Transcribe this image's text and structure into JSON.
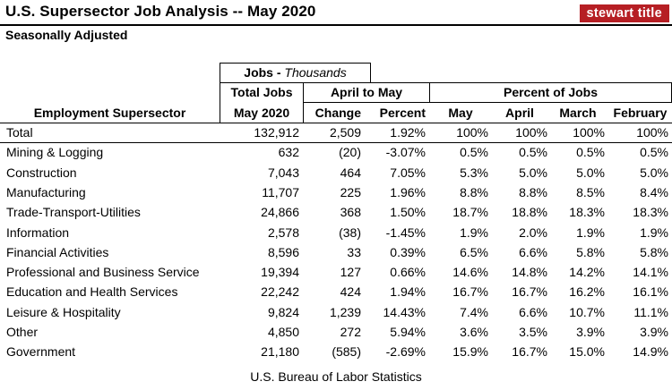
{
  "header": {
    "title": "U.S.  Supersector Job Analysis -- May 2020",
    "subtitle": "Seasonally Adjusted",
    "logo_text": "stewart title"
  },
  "table": {
    "group_header_jobs_bold": "Jobs - ",
    "group_header_jobs_italic": "Thousands",
    "col_total_jobs_1": "Total Jobs",
    "col_total_jobs_2": "May 2020",
    "group_april_may": "April to May",
    "group_percent_jobs": "Percent of Jobs",
    "col_employment": "Employment Supersector",
    "col_change": "Change",
    "col_percent": "Percent",
    "col_may": "May",
    "col_april": "April",
    "col_march": "March",
    "col_february": "February",
    "rows": [
      {
        "name": "Total",
        "total": "132,912",
        "change": "2,509",
        "percent": "1.92%",
        "may": "100%",
        "april": "100%",
        "march": "100%",
        "feb": "100%"
      },
      {
        "name": "Mining & Logging",
        "total": "632",
        "change": "(20)",
        "percent": "-3.07%",
        "may": "0.5%",
        "april": "0.5%",
        "march": "0.5%",
        "feb": "0.5%"
      },
      {
        "name": "Construction",
        "total": "7,043",
        "change": "464",
        "percent": "7.05%",
        "may": "5.3%",
        "april": "5.0%",
        "march": "5.0%",
        "feb": "5.0%"
      },
      {
        "name": "Manufacturing",
        "total": "11,707",
        "change": "225",
        "percent": "1.96%",
        "may": "8.8%",
        "april": "8.8%",
        "march": "8.5%",
        "feb": "8.4%"
      },
      {
        "name": "Trade-Transport-Utilities",
        "total": "24,866",
        "change": "368",
        "percent": "1.50%",
        "may": "18.7%",
        "april": "18.8%",
        "march": "18.3%",
        "feb": "18.3%"
      },
      {
        "name": "Information",
        "total": "2,578",
        "change": "(38)",
        "percent": "-1.45%",
        "may": "1.9%",
        "april": "2.0%",
        "march": "1.9%",
        "feb": "1.9%"
      },
      {
        "name": "Financial Activities",
        "total": "8,596",
        "change": "33",
        "percent": "0.39%",
        "may": "6.5%",
        "april": "6.6%",
        "march": "5.8%",
        "feb": "5.8%"
      },
      {
        "name": "Professional and Business Service",
        "total": "19,394",
        "change": "127",
        "percent": "0.66%",
        "may": "14.6%",
        "april": "14.8%",
        "march": "14.2%",
        "feb": "14.1%"
      },
      {
        "name": "Education and Health Services",
        "total": "22,242",
        "change": "424",
        "percent": "1.94%",
        "may": "16.7%",
        "april": "16.7%",
        "march": "16.2%",
        "feb": "16.1%"
      },
      {
        "name": "Leisure & Hospitality",
        "total": "9,824",
        "change": "1,239",
        "percent": "14.43%",
        "may": "7.4%",
        "april": "6.6%",
        "march": "10.7%",
        "feb": "11.1%"
      },
      {
        "name": "Other",
        "total": "4,850",
        "change": "272",
        "percent": "5.94%",
        "may": "3.6%",
        "april": "3.5%",
        "march": "3.9%",
        "feb": "3.9%"
      },
      {
        "name": "Government",
        "total": "21,180",
        "change": "(585)",
        "percent": "-2.69%",
        "may": "15.9%",
        "april": "16.7%",
        "march": "15.0%",
        "feb": "14.9%"
      }
    ]
  },
  "footer": {
    "source": "U.S. Bureau of Labor Statistics"
  }
}
